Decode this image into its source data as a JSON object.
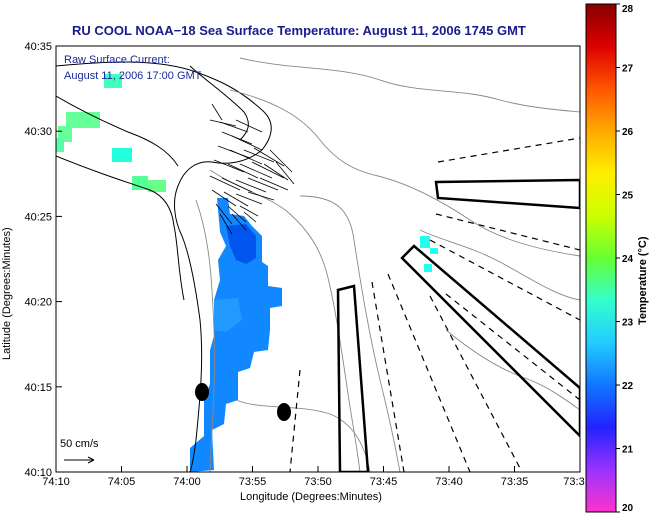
{
  "figure": {
    "title": "RU COOL  NOAA−18  Sea Surface Temperature:  August 11, 2006 1745 GMT",
    "annotation_line1": "Raw Surface Current:",
    "annotation_line2": "August 11, 2006 17:00 GMT",
    "scale_label": "50 cm/s",
    "x_axis_label": "Longitude (Degrees:Minutes)",
    "y_axis_label": "Latitude (Degrees:Minutes)",
    "x_ticks": [
      "74:10",
      "74:05",
      "74:00",
      "73:55",
      "73:50",
      "73:45",
      "73:40",
      "73:35",
      "73:3"
    ],
    "y_ticks": [
      "40:35",
      "40:30",
      "40:25",
      "40:20",
      "40:15",
      "40:10"
    ],
    "colorbar": {
      "label": "Temperature (°C)",
      "ticks": [
        "28",
        "27",
        "26",
        "25",
        "24",
        "23",
        "22",
        "21",
        "20"
      ],
      "colors": [
        "#ff33cc",
        "#9933ff",
        "#2222ff",
        "#1177ff",
        "#22ccff",
        "#33ffcc",
        "#66ff33",
        "#ccff00",
        "#ffee00",
        "#ffaa00",
        "#ff5500",
        "#dd0000",
        "#880000"
      ]
    }
  }
}
